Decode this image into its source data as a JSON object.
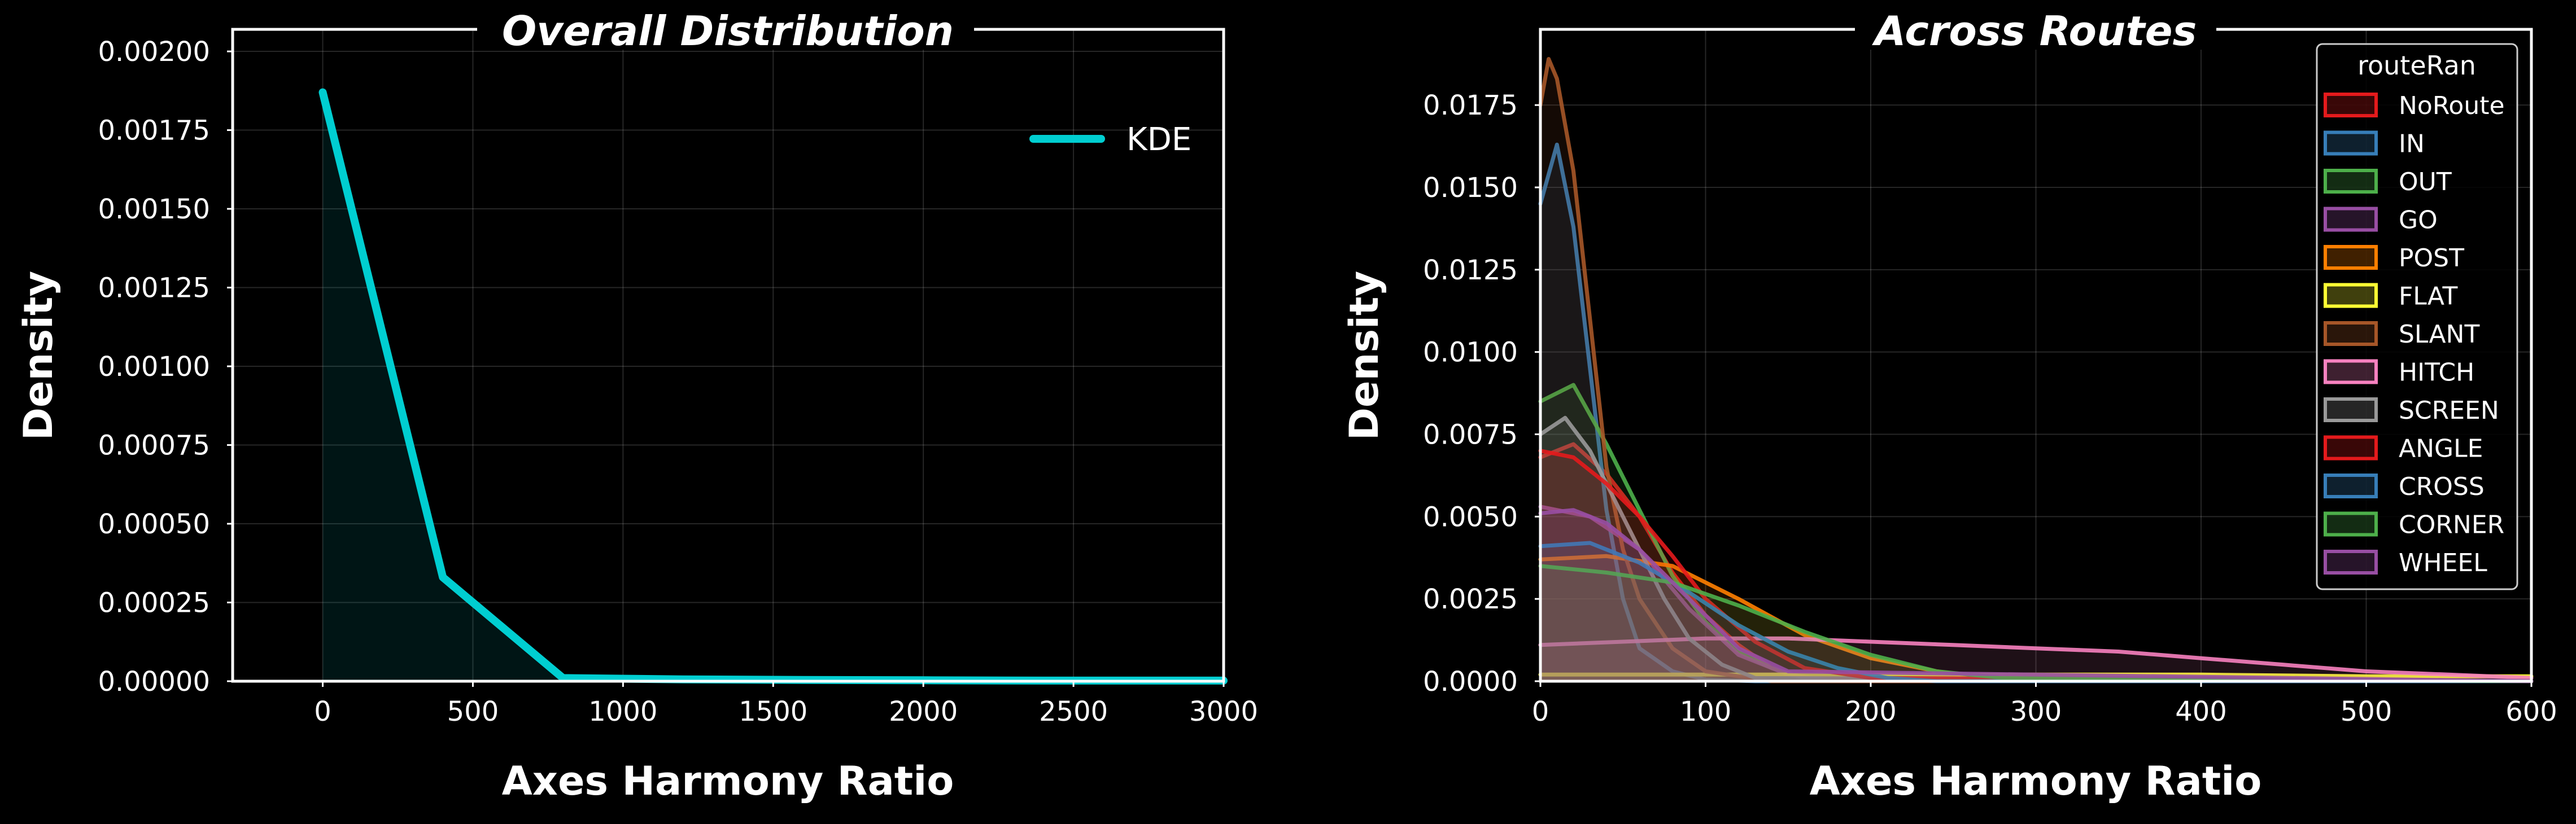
{
  "background": "#000000",
  "chart_data": [
    {
      "type": "area",
      "title": "Overall Distribution",
      "xlabel": "Axes Harmony Ratio",
      "ylabel": "Density",
      "xlim": [
        -300,
        3000
      ],
      "ylim": [
        0,
        0.00207
      ],
      "xticks": [
        0,
        500,
        1000,
        1500,
        2000,
        2500,
        3000
      ],
      "xtick_labels": [
        "0",
        "500",
        "1000",
        "1500",
        "2000",
        "2500",
        "3000"
      ],
      "yticks": [
        0,
        0.00025,
        0.0005,
        0.00075,
        0.001,
        0.00125,
        0.0015,
        0.00175,
        0.002
      ],
      "ytick_labels": [
        "0.00000",
        "0.00025",
        "0.00050",
        "0.00075",
        "0.00100",
        "0.00125",
        "0.00150",
        "0.00175",
        "0.00200"
      ],
      "grid": true,
      "legend_position": "upper-right",
      "series": [
        {
          "name": "KDE",
          "color": "#00CED1",
          "x": [
            0,
            400,
            800,
            1200,
            1600,
            2000,
            2400,
            2800,
            3000
          ],
          "y": [
            0.00187,
            0.00033,
            1e-05,
            6e-06,
            4e-06,
            3e-06,
            2e-06,
            2e-06,
            2e-06
          ]
        }
      ]
    },
    {
      "type": "area",
      "title": "Across Routes",
      "xlabel": "Axes Harmony Ratio",
      "ylabel": "Density",
      "xlim": [
        0,
        600
      ],
      "ylim": [
        0,
        0.0198
      ],
      "xticks": [
        0,
        100,
        200,
        300,
        400,
        500,
        600
      ],
      "xtick_labels": [
        "0",
        "100",
        "200",
        "300",
        "400",
        "500",
        "600"
      ],
      "yticks": [
        0,
        0.0025,
        0.005,
        0.0075,
        0.01,
        0.0125,
        0.015,
        0.0175
      ],
      "ytick_labels": [
        "0.0000",
        "0.0025",
        "0.0050",
        "0.0075",
        "0.0100",
        "0.0125",
        "0.0150",
        "0.0175"
      ],
      "grid": true,
      "legend_title": "routeRan",
      "legend_position": "upper-right",
      "series": [
        {
          "name": "NoRoute",
          "color": "#E41A1C",
          "x": [
            0,
            20,
            40,
            60,
            80,
            100,
            120,
            140,
            160,
            600
          ],
          "y": [
            0.0068,
            0.0072,
            0.0063,
            0.005,
            0.0033,
            0.002,
            0.0011,
            0.0004,
            0.0001,
            0.0
          ]
        },
        {
          "name": "IN",
          "color": "#377EB8",
          "x": [
            0,
            10,
            20,
            30,
            40,
            50,
            60,
            80,
            100,
            130,
            600
          ],
          "y": [
            0.0145,
            0.0163,
            0.0138,
            0.0095,
            0.0052,
            0.0025,
            0.001,
            0.0003,
            5e-05,
            0.0,
            0.0
          ]
        },
        {
          "name": "OUT",
          "color": "#4DAF4A",
          "x": [
            0,
            20,
            40,
            60,
            80,
            100,
            120,
            140,
            160,
            180,
            600
          ],
          "y": [
            0.0085,
            0.009,
            0.0072,
            0.0052,
            0.0032,
            0.0018,
            0.0009,
            0.0004,
            0.0001,
            0.0,
            0.0
          ]
        },
        {
          "name": "GO",
          "color": "#984EA3",
          "x": [
            0,
            30,
            60,
            90,
            120,
            150,
            180,
            600
          ],
          "y": [
            0.0053,
            0.005,
            0.004,
            0.0022,
            0.0008,
            0.0002,
            0.0,
            0.0
          ]
        },
        {
          "name": "POST",
          "color": "#FF7F00",
          "x": [
            0,
            40,
            80,
            120,
            160,
            200,
            240,
            270,
            600
          ],
          "y": [
            0.0037,
            0.0038,
            0.0035,
            0.0025,
            0.0014,
            0.0007,
            0.0003,
            0.0001,
            0.0
          ]
        },
        {
          "name": "FLAT",
          "color": "#FFFF33",
          "x": [
            0,
            100,
            200,
            300,
            400,
            500,
            600
          ],
          "y": [
            0.0002,
            0.0002,
            0.0002,
            0.0002,
            0.0002,
            0.00015,
            0.00015
          ]
        },
        {
          "name": "SLANT",
          "color": "#A65628",
          "x": [
            0,
            5,
            10,
            20,
            30,
            40,
            50,
            60,
            80,
            100,
            140,
            600
          ],
          "y": [
            0.0175,
            0.0189,
            0.0183,
            0.0155,
            0.011,
            0.0065,
            0.004,
            0.0025,
            0.001,
            0.0003,
            0.0,
            0.0
          ]
        },
        {
          "name": "HITCH",
          "color": "#F781BF",
          "x": [
            0,
            50,
            100,
            150,
            200,
            250,
            300,
            350,
            400,
            450,
            500,
            550,
            600
          ],
          "y": [
            0.0011,
            0.0012,
            0.0013,
            0.0013,
            0.0012,
            0.0011,
            0.001,
            0.0009,
            0.0007,
            0.0005,
            0.0003,
            0.0002,
            0.0001
          ]
        },
        {
          "name": "SCREEN",
          "color": "#999999",
          "x": [
            0,
            15,
            30,
            45,
            60,
            75,
            90,
            110,
            130,
            600
          ],
          "y": [
            0.0075,
            0.008,
            0.007,
            0.0055,
            0.004,
            0.0025,
            0.0013,
            0.0005,
            0.0001,
            0.0
          ]
        },
        {
          "name": "ANGLE",
          "color": "#E41A1C",
          "x": [
            0,
            20,
            40,
            60,
            80,
            100,
            130,
            160,
            200,
            600
          ],
          "y": [
            0.007,
            0.0068,
            0.006,
            0.005,
            0.0038,
            0.0025,
            0.0012,
            0.0004,
            0.0001,
            0.0
          ]
        },
        {
          "name": "CROSS",
          "color": "#377EB8",
          "x": [
            0,
            30,
            60,
            90,
            120,
            150,
            180,
            210,
            240,
            600
          ],
          "y": [
            0.0041,
            0.0042,
            0.0036,
            0.0027,
            0.0017,
            0.0009,
            0.0004,
            0.0001,
            0.0,
            0.0
          ]
        },
        {
          "name": "CORNER",
          "color": "#4DAF4A",
          "x": [
            0,
            40,
            80,
            120,
            160,
            200,
            240,
            280,
            600
          ],
          "y": [
            0.0035,
            0.0033,
            0.003,
            0.0023,
            0.0015,
            0.0008,
            0.0003,
            0.0001,
            0.0
          ]
        },
        {
          "name": "WHEEL",
          "color": "#984EA3",
          "x": [
            0,
            20,
            40,
            60,
            80,
            100,
            120,
            150,
            600
          ],
          "y": [
            0.0051,
            0.0052,
            0.0048,
            0.004,
            0.003,
            0.002,
            0.001,
            0.0003,
            0.0
          ]
        }
      ]
    }
  ]
}
